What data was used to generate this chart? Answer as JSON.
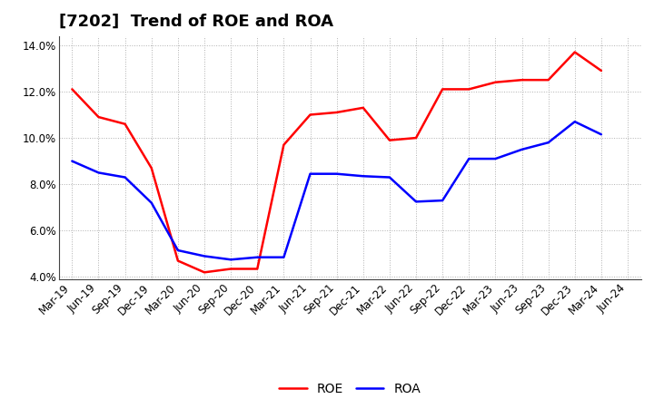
{
  "title": "[7202]  Trend of ROE and ROA",
  "x_labels": [
    "Mar-19",
    "Jun-19",
    "Sep-19",
    "Dec-19",
    "Mar-20",
    "Jun-20",
    "Sep-20",
    "Dec-20",
    "Mar-21",
    "Jun-21",
    "Sep-21",
    "Dec-21",
    "Mar-22",
    "Jun-22",
    "Sep-22",
    "Dec-22",
    "Mar-23",
    "Jun-23",
    "Sep-23",
    "Dec-23",
    "Mar-24",
    "Jun-24"
  ],
  "roe": [
    12.1,
    10.9,
    10.6,
    8.7,
    4.7,
    4.2,
    4.35,
    4.35,
    9.7,
    11.0,
    11.1,
    11.3,
    9.9,
    10.0,
    12.1,
    12.1,
    12.4,
    12.5,
    12.5,
    13.7,
    12.9,
    null
  ],
  "roa": [
    9.0,
    8.5,
    8.3,
    7.2,
    5.15,
    4.9,
    4.75,
    4.85,
    4.85,
    8.45,
    8.45,
    8.35,
    8.3,
    7.25,
    7.3,
    9.1,
    9.1,
    9.5,
    9.8,
    10.7,
    10.15,
    null
  ],
  "ylim": [
    3.9,
    14.4
  ],
  "yticks": [
    4.0,
    6.0,
    8.0,
    10.0,
    12.0,
    14.0
  ],
  "roe_color": "#ff0000",
  "roa_color": "#0000ff",
  "background_color": "#ffffff",
  "grid_color": "#b0b0b0",
  "line_width": 1.8,
  "title_fontsize": 13,
  "tick_fontsize": 8.5,
  "legend_fontsize": 10
}
